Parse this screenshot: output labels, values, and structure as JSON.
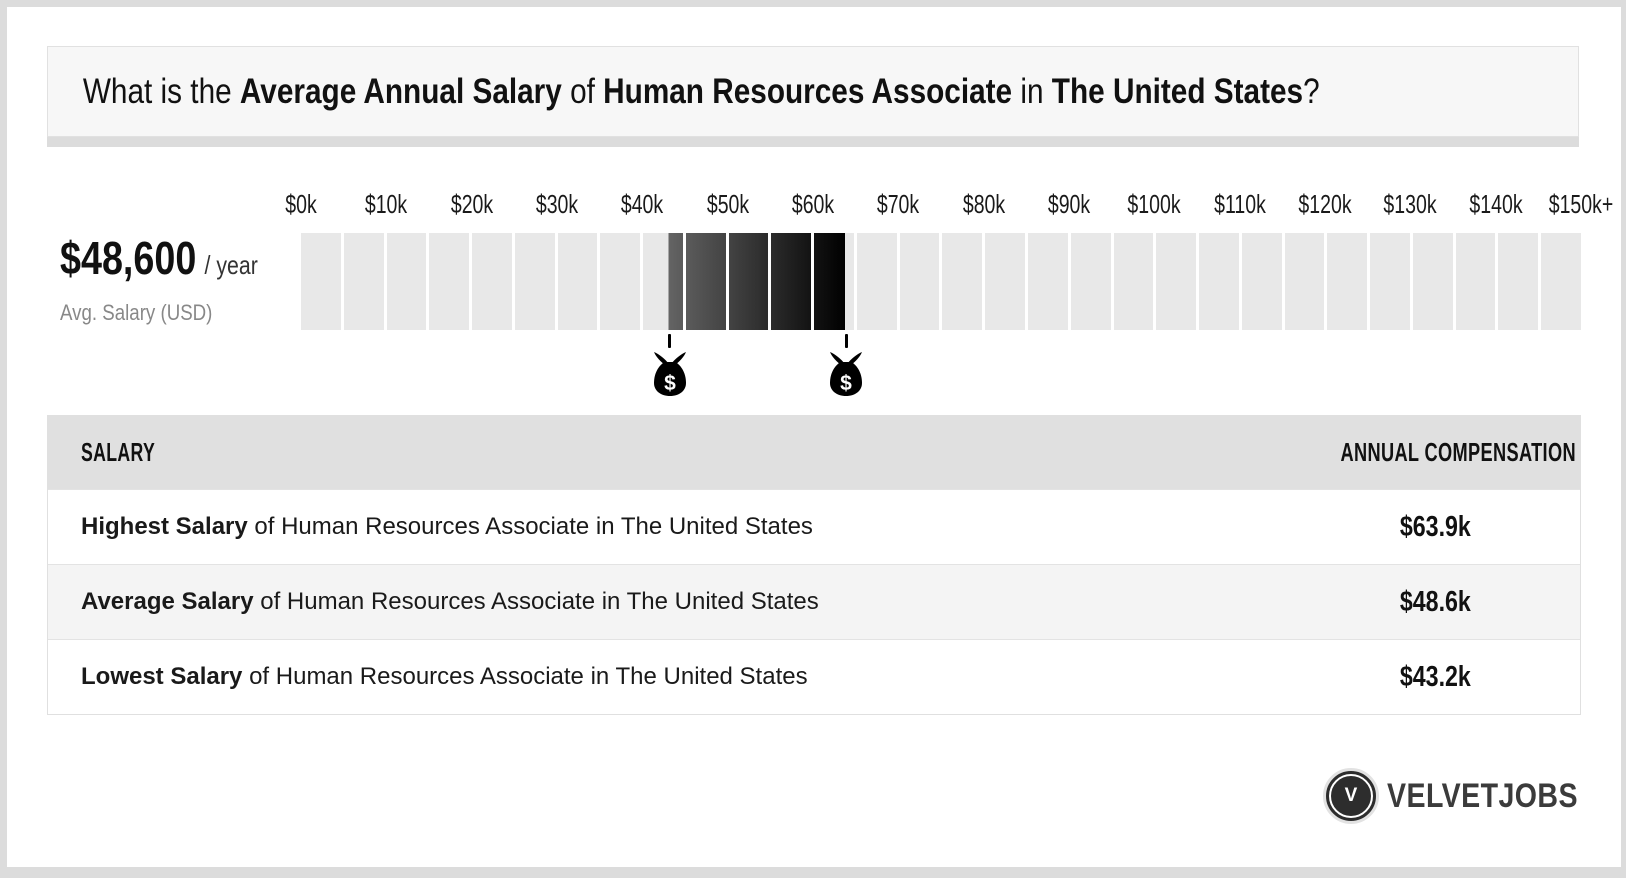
{
  "title": {
    "prefix": "What is the ",
    "bold1": "Average Annual Salary",
    "mid1": " of ",
    "bold2": "Human Resources Associate",
    "mid2": " in ",
    "bold3": "The United States",
    "suffix": "?"
  },
  "summary": {
    "amount": "$48,600",
    "per": "/ year",
    "caption": "Avg. Salary (USD)"
  },
  "chart_data": {
    "type": "bar",
    "title": "Average Annual Salary of Human Resources Associate in The United States",
    "axis_range_k": [
      0,
      150
    ],
    "axis_ticks": [
      {
        "label": "$0k",
        "value_k": 0
      },
      {
        "label": "$10k",
        "value_k": 10
      },
      {
        "label": "$20k",
        "value_k": 20
      },
      {
        "label": "$30k",
        "value_k": 30
      },
      {
        "label": "$40k",
        "value_k": 40
      },
      {
        "label": "$50k",
        "value_k": 50
      },
      {
        "label": "$60k",
        "value_k": 60
      },
      {
        "label": "$70k",
        "value_k": 70
      },
      {
        "label": "$80k",
        "value_k": 80
      },
      {
        "label": "$90k",
        "value_k": 90
      },
      {
        "label": "$100k",
        "value_k": 100
      },
      {
        "label": "$110k",
        "value_k": 110
      },
      {
        "label": "$120k",
        "value_k": 120
      },
      {
        "label": "$130k",
        "value_k": 130
      },
      {
        "label": "$140k",
        "value_k": 140
      },
      {
        "label": "$150k+",
        "value_k": 150
      }
    ],
    "segments_total": 30,
    "segment_step_k": 5,
    "segment_color": "#e8e8e8",
    "gap_color": "#ffffff",
    "highlight": {
      "low_k": 43.2,
      "high_k": 63.9,
      "gradient_from": "#646464",
      "gradient_to": "#000000"
    },
    "markers": [
      {
        "name": "lowest-salary",
        "value_k": 43.2,
        "icon": "money-bag-icon",
        "symbol": "$"
      },
      {
        "name": "highest-salary",
        "value_k": 63.9,
        "icon": "money-bag-icon",
        "symbol": "$"
      }
    ],
    "values": {
      "lowest_k": 43.2,
      "average_k": 48.6,
      "highest_k": 63.9
    }
  },
  "table": {
    "headers": [
      "SALARY",
      "ANNUAL COMPENSATION"
    ],
    "rows": [
      {
        "bold": "Highest Salary",
        "rest": " of Human Resources Associate in The United States",
        "value": "$63.9k"
      },
      {
        "bold": "Average Salary",
        "rest": " of Human Resources Associate in The United States",
        "value": "$48.6k"
      },
      {
        "bold": "Lowest Salary",
        "rest": " of Human Resources Associate in The United States",
        "value": "$43.2k"
      }
    ]
  },
  "footer": {
    "brand": "VELVETJOBS",
    "brand_initial": "V"
  },
  "colors": {
    "frame": "#dcdcdc",
    "card": "#ffffff",
    "title_box_bg": "#f7f7f7",
    "header_row_bg": "#e0e0e0",
    "alt_row_bg": "#f4f4f4",
    "caption_gray": "#888888",
    "brand_dark": "#2d2d2d"
  }
}
